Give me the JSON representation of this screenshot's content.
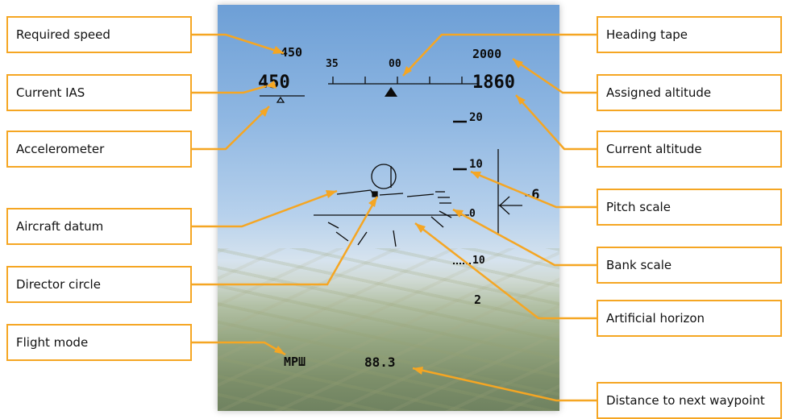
{
  "labels": {
    "required_speed": "Required speed",
    "current_ias": "Current IAS",
    "accelerometer": "Accelerometer",
    "aircraft_datum": "Aircraft datum",
    "director_circle": "Director circle",
    "flight_mode": "Flight mode",
    "heading_tape": "Heading tape",
    "assigned_altitude": "Assigned altitude",
    "current_altitude": "Current altitude",
    "pitch_scale": "Pitch scale",
    "bank_scale": "Bank scale",
    "artificial_horizon": "Artificial horizon",
    "distance_to_next_waypoint": "Distance to next waypoint"
  },
  "hud": {
    "required_speed": "450",
    "current_ias": "450",
    "heading_35": "35",
    "heading_00": "00",
    "assigned_altitude": "2000",
    "current_altitude": "1860",
    "pitch_20": "20",
    "pitch_10": "10",
    "pitch_0": "0",
    "pitch_neg10": "10",
    "vertical_speed": "-6",
    "glide_value": "2",
    "flight_mode": "МРШ",
    "distance": "88.3"
  },
  "colors": {
    "accent": "#f5a623",
    "hud_symbols": "#0c0c0c"
  }
}
